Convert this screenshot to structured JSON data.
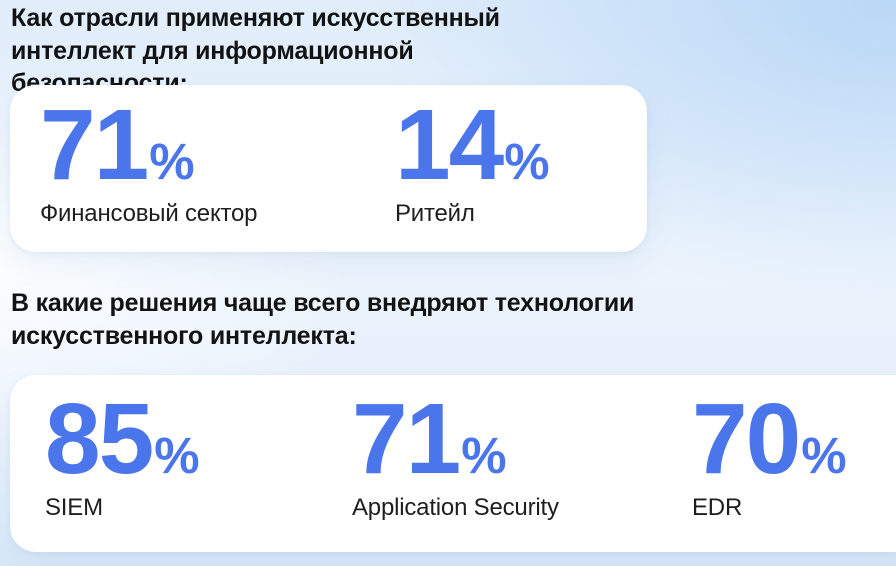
{
  "accent_color": "#4b76eb",
  "background_colors": {
    "top_right": "#b7d6f6",
    "left": "#fcfeff",
    "bottom": "#d8e9f8"
  },
  "sections": [
    {
      "heading": "Как отрасли применяют искусственный интеллект для информационной безопасности:",
      "stats": [
        {
          "value": "71",
          "unit": "%",
          "label": "Финансовый сектор"
        },
        {
          "value": "14",
          "unit": "%",
          "label": "Ритейл"
        }
      ]
    },
    {
      "heading": "В какие решения чаще всего внедряют технологии искусственного интеллекта:",
      "stats": [
        {
          "value": "85",
          "unit": "%",
          "label": "SIEM"
        },
        {
          "value": "71",
          "unit": "%",
          "label": "Application Security"
        },
        {
          "value": "70",
          "unit": "%",
          "label": "EDR"
        }
      ]
    }
  ],
  "chart_data": [
    {
      "type": "table",
      "title": "Как отрасли применяют искусственный интеллект для информационной безопасности:",
      "categories": [
        "Финансовый сектор",
        "Ритейл"
      ],
      "values": [
        71,
        14
      ],
      "unit": "%"
    },
    {
      "type": "table",
      "title": "В какие решения чаще всего внедряют технологии искусственного интеллекта:",
      "categories": [
        "SIEM",
        "Application Security",
        "EDR"
      ],
      "values": [
        85,
        71,
        70
      ],
      "unit": "%"
    }
  ]
}
